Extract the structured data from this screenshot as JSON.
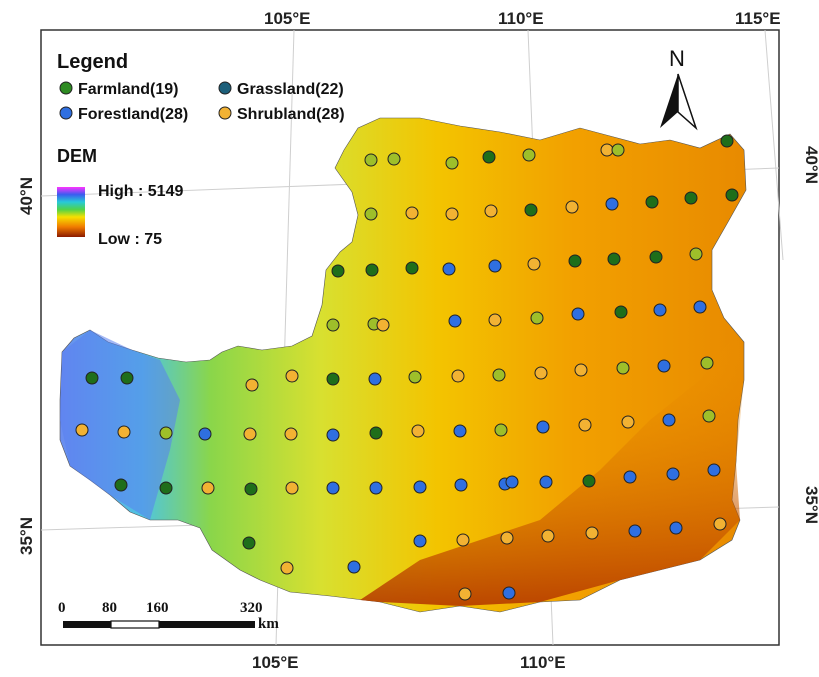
{
  "map": {
    "longitude_labels": [
      "105°E",
      "110°E",
      "115°E"
    ],
    "latitude_labels": [
      "40°N",
      "35°N"
    ],
    "north_arrow_label": "N"
  },
  "legend": {
    "title": "Legend",
    "items": [
      {
        "label": "Farmland(19)",
        "color": "#2e8b22"
      },
      {
        "label": "Grassland(22)",
        "color": "#1c5f7a"
      },
      {
        "label": "Forestland(28)",
        "color": "#2f6fe0"
      },
      {
        "label": "Shrubland(28)",
        "color": "#f2b233"
      }
    ],
    "dem": {
      "title": "DEM",
      "high_label": "High : 5149",
      "low_label": "Low : 75"
    }
  },
  "scale_bar": {
    "ticks": [
      "0",
      "80",
      "160",
      "320"
    ],
    "unit": "km"
  },
  "colors": {
    "farmland": "#1f6e1a",
    "grassland_fill": "#9ebf2a",
    "forestland": "#2f6fe0",
    "shrubland": "#f2b233"
  }
}
